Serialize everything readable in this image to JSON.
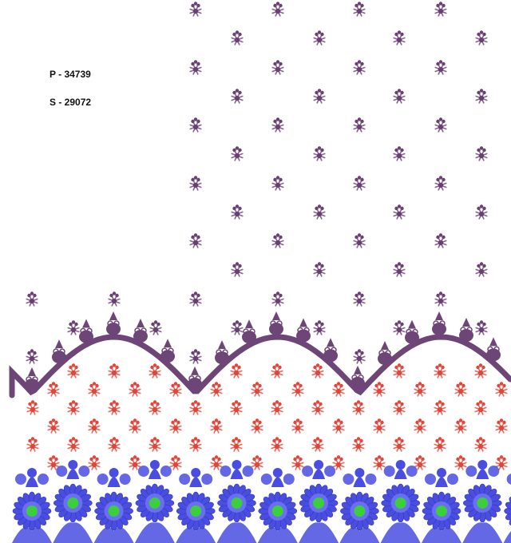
{
  "labels": {
    "p_code": "P - 34739",
    "s_code": "S - 29072"
  },
  "colors": {
    "background": "#ffffff",
    "butta_purple": "#6a3f73",
    "scallop_purple": "#6e4577",
    "butta_red": "#e2463a",
    "border_blue": "#4a4ee0",
    "flower_center_green": "#3ccf3c"
  }
}
